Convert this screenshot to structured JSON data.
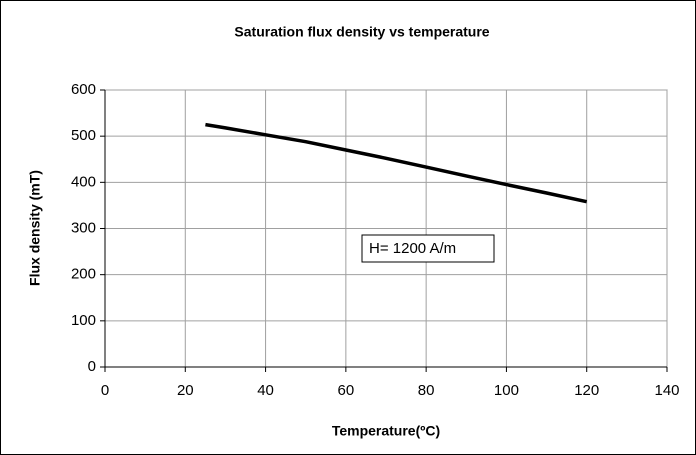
{
  "chart_data": {
    "type": "line",
    "title": "Saturation flux density vs temperature",
    "x_label": "Temperature(ºC)",
    "y_label": "Flux density (mT)",
    "annotation": "H= 1200 A/m",
    "x": [
      25,
      30,
      40,
      50,
      60,
      70,
      80,
      90,
      100,
      110,
      120
    ],
    "series": [
      {
        "name": "Flux density",
        "color": "#000000",
        "values": [
          525,
          518,
          503,
          488,
          470,
          452,
          433,
          414,
          395,
          377,
          358
        ]
      }
    ],
    "xlim": [
      0,
      140
    ],
    "xticks": [
      0,
      20,
      40,
      60,
      80,
      100,
      120,
      140
    ],
    "ylim": [
      0,
      600
    ],
    "yticks": [
      0,
      100,
      200,
      300,
      400,
      500,
      600
    ],
    "grid": true
  }
}
